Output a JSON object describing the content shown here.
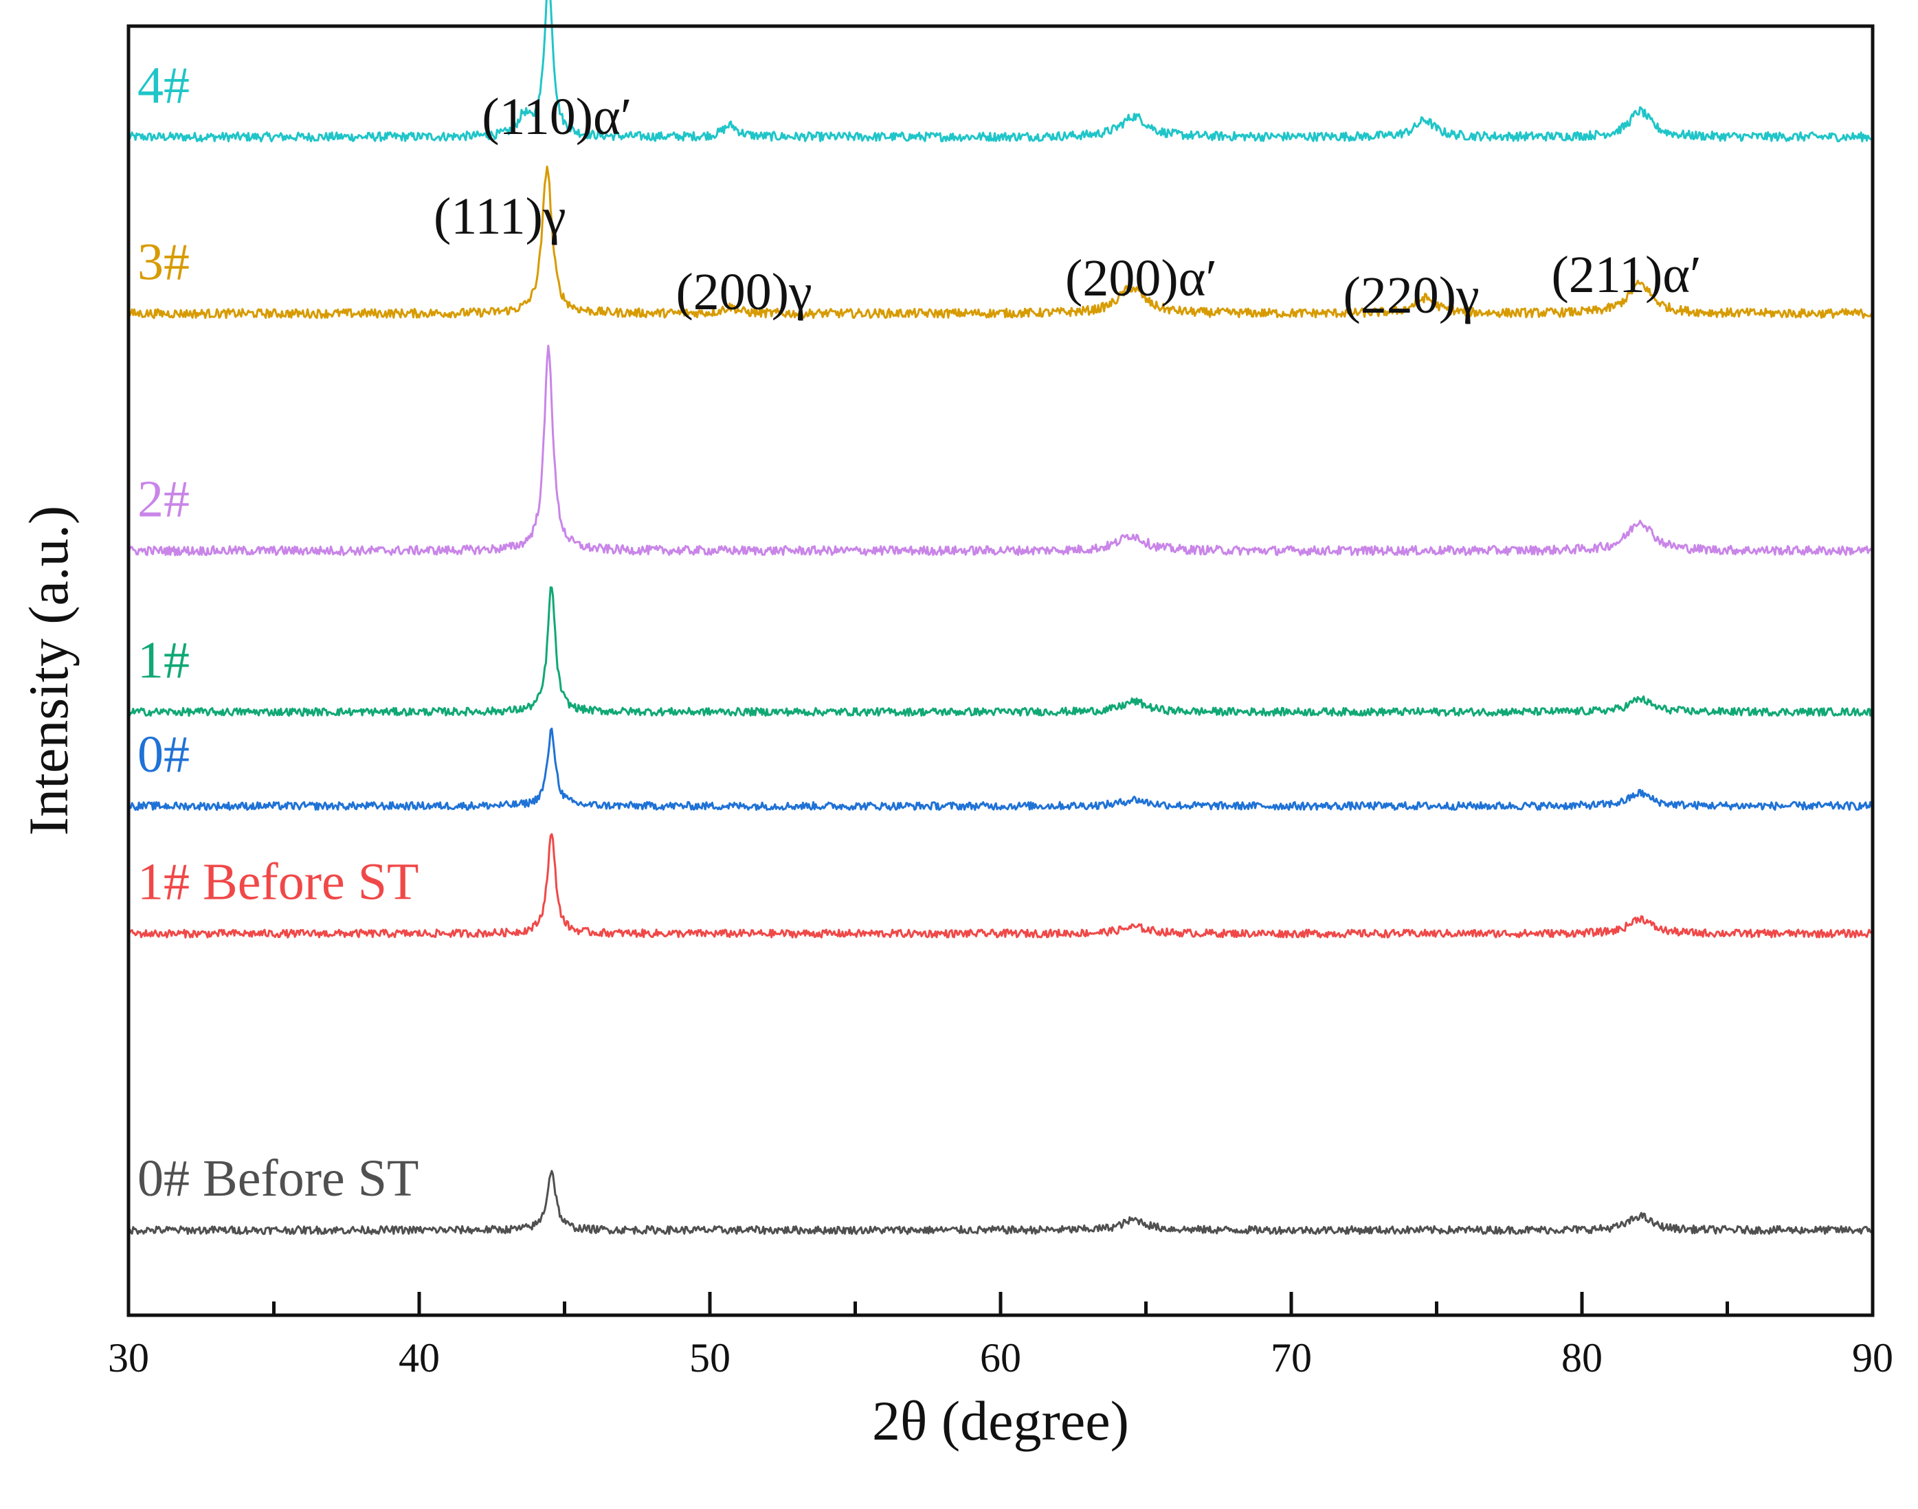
{
  "chart_data": {
    "type": "line",
    "title": "",
    "xlabel": "2θ (degree)",
    "ylabel": "Intensity (a.u.)",
    "xlim": [
      30,
      90
    ],
    "ylim": [
      0,
      100
    ],
    "x_ticks": [
      30,
      40,
      50,
      60,
      70,
      80,
      90
    ],
    "x_minor_ticks": [
      35,
      45,
      55,
      65,
      75,
      85
    ],
    "grid": false,
    "legend": "none (series labels written beside traces)",
    "peak_labels": [
      {
        "text": "(111)γ",
        "x": 43.6
      },
      {
        "text": "(110)α′",
        "x": 44.5
      },
      {
        "text": "(200)γ",
        "x": 50.7
      },
      {
        "text": "(200)α′",
        "x": 64.6
      },
      {
        "text": "(220)γ",
        "x": 74.6
      },
      {
        "text": "(211)α′",
        "x": 82.0
      }
    ],
    "series": [
      {
        "name": "4#",
        "color": "#1fc5c8",
        "baseline": 91.4,
        "noise": 0.35,
        "peaks": [
          {
            "x": 43.6,
            "height": 1.5,
            "width": 0.25
          },
          {
            "x": 44.45,
            "height": 12.5,
            "width": 0.17
          },
          {
            "x": 50.7,
            "height": 0.9,
            "width": 0.3
          },
          {
            "x": 64.6,
            "height": 1.6,
            "width": 0.55
          },
          {
            "x": 74.6,
            "height": 1.3,
            "width": 0.4
          },
          {
            "x": 82.0,
            "height": 2.0,
            "width": 0.45
          }
        ]
      },
      {
        "name": "3#",
        "color": "#d79b00",
        "baseline": 77.7,
        "noise": 0.35,
        "peaks": [
          {
            "x": 44.4,
            "height": 11.4,
            "width": 0.2
          },
          {
            "x": 50.7,
            "height": 0.5,
            "width": 0.3
          },
          {
            "x": 64.5,
            "height": 2.0,
            "width": 0.55
          },
          {
            "x": 74.6,
            "height": 1.2,
            "width": 0.45
          },
          {
            "x": 82.0,
            "height": 2.3,
            "width": 0.5
          }
        ]
      },
      {
        "name": "2#",
        "color": "#c985e8",
        "baseline": 59.3,
        "noise": 0.35,
        "peaks": [
          {
            "x": 44.45,
            "height": 15.8,
            "width": 0.18
          },
          {
            "x": 64.5,
            "height": 1.2,
            "width": 0.55
          },
          {
            "x": 82.0,
            "height": 2.3,
            "width": 0.5
          }
        ]
      },
      {
        "name": "1#",
        "color": "#10a874",
        "baseline": 46.8,
        "noise": 0.3,
        "peaks": [
          {
            "x": 44.55,
            "height": 9.8,
            "width": 0.16
          },
          {
            "x": 64.6,
            "height": 0.8,
            "width": 0.5
          },
          {
            "x": 82.0,
            "height": 1.0,
            "width": 0.45
          }
        ]
      },
      {
        "name": "0#",
        "color": "#1f72d6",
        "baseline": 39.5,
        "noise": 0.3,
        "peaks": [
          {
            "x": 44.55,
            "height": 5.8,
            "width": 0.17
          },
          {
            "x": 64.6,
            "height": 0.5,
            "width": 0.5
          },
          {
            "x": 82.0,
            "height": 1.0,
            "width": 0.45
          }
        ]
      },
      {
        "name": "1# Before ST",
        "color": "#f04848",
        "baseline": 29.6,
        "noise": 0.3,
        "peaks": [
          {
            "x": 44.55,
            "height": 7.7,
            "width": 0.17
          },
          {
            "x": 64.6,
            "height": 0.5,
            "width": 0.6
          },
          {
            "x": 82.0,
            "height": 1.2,
            "width": 0.45
          }
        ]
      },
      {
        "name": "0# Before ST",
        "color": "#505050",
        "baseline": 6.6,
        "noise": 0.3,
        "peaks": [
          {
            "x": 44.55,
            "height": 4.6,
            "width": 0.18
          },
          {
            "x": 64.6,
            "height": 0.8,
            "width": 0.5
          },
          {
            "x": 82.0,
            "height": 1.1,
            "width": 0.45
          }
        ]
      }
    ]
  }
}
